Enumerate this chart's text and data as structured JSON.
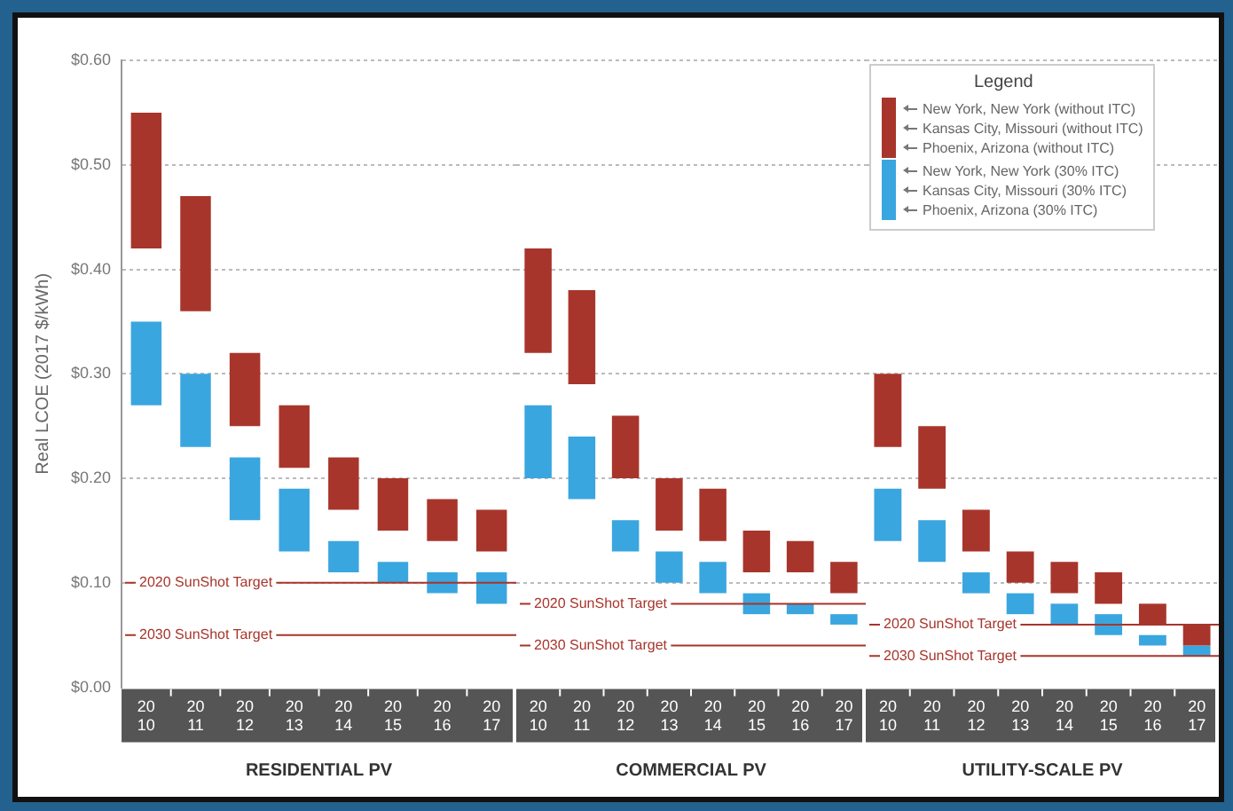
{
  "chart_data": [
    {
      "type": "bar",
      "xlabel": "RESIDENTIAL PV",
      "ylabel": "Real LCOE (2017 $/kWh)",
      "categories": [
        "2010",
        "2011",
        "2012",
        "2013",
        "2014",
        "2015",
        "2016",
        "2017"
      ],
      "ylim": [
        0,
        0.6
      ],
      "yticks": [
        {
          "value": 0,
          "label": "$0.00"
        },
        {
          "value": 0.1,
          "label": "$0.10"
        },
        {
          "value": 0.2,
          "label": "$0.20"
        },
        {
          "value": 0.3,
          "label": "$0.30"
        },
        {
          "value": 0.4,
          "label": "$0.40"
        },
        {
          "value": 0.5,
          "label": "$0.50"
        },
        {
          "value": 0.6,
          "label": "$0.60"
        }
      ],
      "grid": "y",
      "series": [
        {
          "color": "#a8352b",
          "base": [
            0.42,
            0.36,
            0.25,
            0.21,
            0.17,
            0.15,
            0.14,
            0.13
          ],
          "values": [
            0.13,
            0.11,
            0.07,
            0.06,
            0.05,
            0.05,
            0.04,
            0.04
          ]
        },
        {
          "color": "#3aa6df",
          "base": [
            0.27,
            0.23,
            0.16,
            0.13,
            0.11,
            0.1,
            0.09,
            0.08
          ],
          "values": [
            0.08,
            0.07,
            0.06,
            0.06,
            0.03,
            0.02,
            0.02,
            0.03
          ]
        }
      ],
      "ref_lines": [
        {
          "axis": "y",
          "value": 0.1,
          "label": "2020 SunShot Target",
          "color": "#a8352b"
        },
        {
          "axis": "y",
          "value": 0.05,
          "label": "2030 SunShot Target",
          "color": "#a8352b"
        }
      ]
    },
    {
      "type": "bar",
      "xlabel": "COMMERCIAL PV",
      "categories": [
        "2010",
        "2011",
        "2012",
        "2013",
        "2014",
        "2015",
        "2016",
        "2017"
      ],
      "ylim": [
        0,
        0.6
      ],
      "yticks": [
        {
          "value": 0,
          "label": null
        },
        {
          "value": 0.1,
          "label": null
        },
        {
          "value": 0.2,
          "label": null
        },
        {
          "value": 0.3,
          "label": null
        },
        {
          "value": 0.4,
          "label": null
        },
        {
          "value": 0.5,
          "label": null
        },
        {
          "value": 0.6,
          "label": null
        }
      ],
      "grid": "y",
      "tick_labels": "x",
      "series": [
        {
          "color": "#a8352b",
          "base": [
            0.32,
            0.29,
            0.2,
            0.15,
            0.14,
            0.11,
            0.11,
            0.09
          ],
          "values": [
            0.1,
            0.09,
            0.06,
            0.05,
            0.05,
            0.04,
            0.03,
            0.03
          ]
        },
        {
          "color": "#3aa6df",
          "base": [
            0.2,
            0.18,
            0.13,
            0.1,
            0.09,
            0.07,
            0.07,
            0.06
          ],
          "values": [
            0.07,
            0.06,
            0.03,
            0.03,
            0.03,
            0.02,
            0.01,
            0.01
          ]
        }
      ],
      "ref_lines": [
        {
          "axis": "y",
          "value": 0.08,
          "label": "2020 SunShot Target",
          "color": "#a8352b"
        },
        {
          "axis": "y",
          "value": 0.04,
          "label": "2030 SunShot Target",
          "color": "#a8352b"
        }
      ]
    },
    {
      "type": "bar",
      "xlabel": "UTILITY-SCALE PV",
      "categories": [
        "2010",
        "2011",
        "2012",
        "2013",
        "2014",
        "2015",
        "2016",
        "2017"
      ],
      "ylim": [
        0,
        0.6
      ],
      "yticks": [
        {
          "value": 0,
          "label": null
        },
        {
          "value": 0.1,
          "label": null
        },
        {
          "value": 0.2,
          "label": null
        },
        {
          "value": 0.3,
          "label": null
        },
        {
          "value": 0.4,
          "label": null
        },
        {
          "value": 0.5,
          "label": null
        },
        {
          "value": 0.6,
          "label": null
        }
      ],
      "grid": "y",
      "tick_labels": "x",
      "series": [
        {
          "color": "#a8352b",
          "base": [
            0.23,
            0.19,
            0.13,
            0.1,
            0.09,
            0.08,
            0.06,
            0.04
          ],
          "values": [
            0.07,
            0.06,
            0.04,
            0.03,
            0.03,
            0.03,
            0.02,
            0.02
          ]
        },
        {
          "color": "#3aa6df",
          "base": [
            0.14,
            0.12,
            0.09,
            0.07,
            0.06,
            0.05,
            0.04,
            0.03
          ],
          "values": [
            0.05,
            0.04,
            0.02,
            0.02,
            0.02,
            0.02,
            0.01,
            0.01
          ]
        }
      ],
      "ref_lines": [
        {
          "axis": "y",
          "value": 0.06,
          "label": "2020 SunShot Target",
          "color": "#a8352b"
        },
        {
          "axis": "y",
          "value": 0.03,
          "label": "2030 SunShot Target",
          "color": "#a8352b"
        }
      ],
      "legend_title": "Legend",
      "annotations": [
        "New York, New York (without ITC)",
        "Kansas City, Missouri (without ITC)",
        "Phoenix, Arizona (without ITC)",
        "New York, New York (30% ITC)",
        "Kansas City, Missouri (30% ITC)",
        "Phoenix, Arizona (30% ITC)"
      ]
    }
  ]
}
